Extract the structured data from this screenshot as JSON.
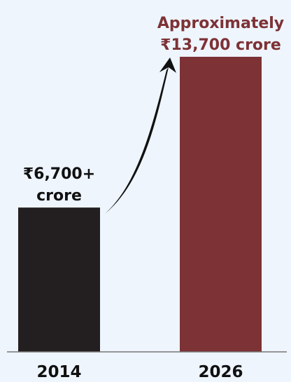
{
  "chart_data": {
    "type": "bar",
    "title": "",
    "xlabel": "",
    "ylabel": "",
    "categories": [
      "2014",
      "2026"
    ],
    "values": [
      6700,
      13700
    ],
    "ylim": [
      0,
      13700
    ],
    "grid": false,
    "data_labels": [
      [
        "₹6,700+",
        "crore"
      ],
      [
        "Approximately",
        "₹13,700 crore"
      ]
    ],
    "colors": {
      "background": "#eef5fd",
      "bar_2014": "#231f20",
      "bar_2026": "#7d3236",
      "label_2014": "#111111",
      "label_2026": "#7d3236",
      "axis": "#777777",
      "arrow": "#111111",
      "category_text": "#111111"
    }
  }
}
